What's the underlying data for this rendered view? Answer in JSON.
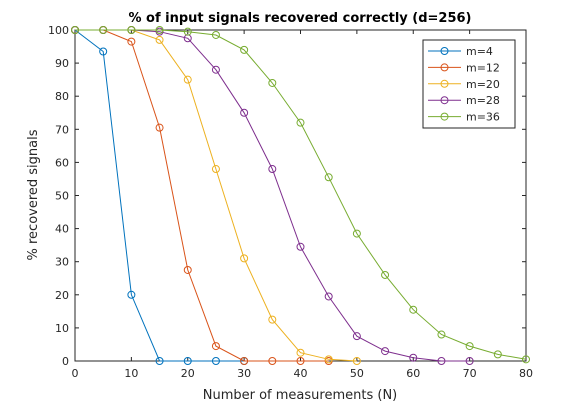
{
  "chart_data": {
    "type": "line",
    "title": "% of input signals recovered correctly (d=256)",
    "xlabel": "Number of measurements (N)",
    "ylabel": "% recovered signals",
    "xlim": [
      0,
      80
    ],
    "ylim": [
      0,
      100
    ],
    "xticks": [
      "0",
      "10",
      "20",
      "30",
      "40",
      "50",
      "60",
      "70",
      "80"
    ],
    "yticks": [
      "0",
      "10",
      "20",
      "30",
      "40",
      "50",
      "60",
      "70",
      "80",
      "90",
      "100"
    ],
    "grid": false,
    "legend_position": "top-right",
    "marker": "circle",
    "series": [
      {
        "name": "m=4",
        "color": "#0072BD",
        "x": [
          0,
          5,
          10,
          15,
          20,
          25,
          30
        ],
        "y": [
          100,
          93.5,
          20,
          0,
          0,
          0,
          0
        ]
      },
      {
        "name": "m=12",
        "color": "#D95319",
        "x": [
          0,
          5,
          10,
          15,
          20,
          25,
          30,
          35,
          40,
          45
        ],
        "y": [
          100,
          100,
          96.5,
          70.5,
          27.5,
          4.5,
          0,
          0,
          0,
          0
        ]
      },
      {
        "name": "m=20",
        "color": "#EDB120",
        "x": [
          0,
          5,
          10,
          15,
          20,
          25,
          30,
          35,
          40,
          45,
          50
        ],
        "y": [
          100,
          100,
          100,
          97,
          85,
          58,
          31,
          12.5,
          2.5,
          0.5,
          0
        ]
      },
      {
        "name": "m=28",
        "color": "#7E2F8E",
        "x": [
          0,
          5,
          10,
          15,
          20,
          25,
          30,
          35,
          40,
          45,
          50,
          55,
          60,
          65,
          70
        ],
        "y": [
          100,
          100,
          100,
          99.5,
          97.5,
          88,
          75,
          58,
          34.5,
          19.5,
          7.5,
          3,
          1,
          0,
          0
        ]
      },
      {
        "name": "m=36",
        "color": "#77AC30",
        "x": [
          0,
          5,
          10,
          15,
          20,
          25,
          30,
          35,
          40,
          45,
          50,
          55,
          60,
          65,
          70,
          75,
          80
        ],
        "y": [
          100,
          100,
          100,
          100,
          99.5,
          98.5,
          94,
          84,
          72,
          55.5,
          38.5,
          26,
          15.5,
          8,
          4.5,
          2,
          0.5
        ]
      }
    ]
  }
}
